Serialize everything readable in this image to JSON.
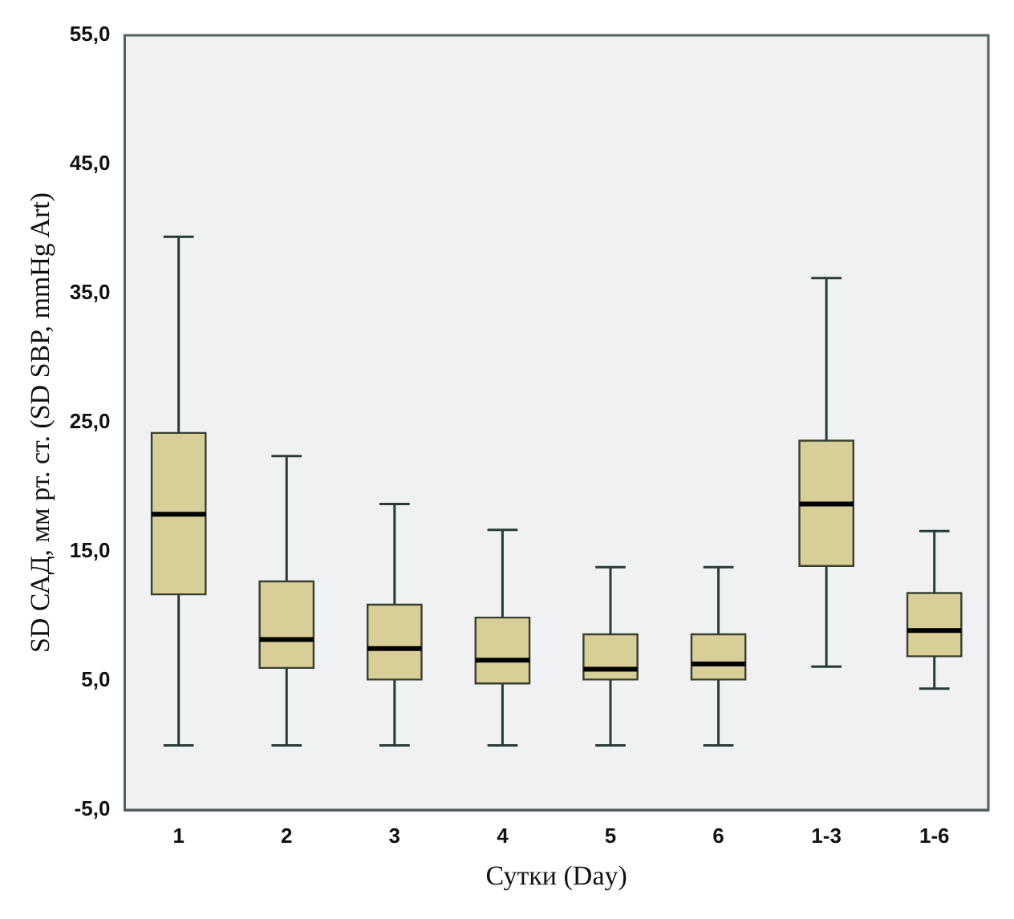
{
  "chart_data": {
    "type": "box",
    "xlabel": "Сутки (Day)",
    "ylabel": "SD САД, мм рт. ст. (SD SBP, mmHg Art)",
    "categories": [
      "1",
      "2",
      "3",
      "4",
      "5",
      "6",
      "1-3",
      "1-6"
    ],
    "color": "#d8cf98",
    "boxes": [
      {
        "low": 0,
        "q1": 11.7,
        "median": 17.9,
        "q3": 24.2,
        "high": 39.4
      },
      {
        "low": 0,
        "q1": 6.0,
        "median": 8.2,
        "q3": 12.7,
        "high": 22.4
      },
      {
        "low": 0,
        "q1": 5.1,
        "median": 7.5,
        "q3": 10.9,
        "high": 18.7
      },
      {
        "low": 0,
        "q1": 4.8,
        "median": 6.6,
        "q3": 9.9,
        "high": 16.7
      },
      {
        "low": 0,
        "q1": 5.1,
        "median": 5.9,
        "q3": 8.6,
        "high": 13.8
      },
      {
        "low": 0,
        "q1": 5.1,
        "median": 6.3,
        "q3": 8.6,
        "high": 13.8
      },
      {
        "low": 6.1,
        "q1": 13.9,
        "median": 18.7,
        "q3": 23.6,
        "high": 36.2
      },
      {
        "low": 4.4,
        "q1": 6.9,
        "median": 8.9,
        "q3": 11.8,
        "high": 16.6
      }
    ],
    "ylim": [
      -5,
      55
    ],
    "yticks": [
      {
        "value": -5,
        "label": "-5,0"
      },
      {
        "value": 5,
        "label": "5,0"
      },
      {
        "value": 15,
        "label": "15,0"
      },
      {
        "value": 25,
        "label": "25,0"
      },
      {
        "value": 35,
        "label": "35,0"
      },
      {
        "value": 45,
        "label": "45,0"
      },
      {
        "value": 55,
        "label": "55,0"
      }
    ],
    "grid": false,
    "legend": false
  }
}
